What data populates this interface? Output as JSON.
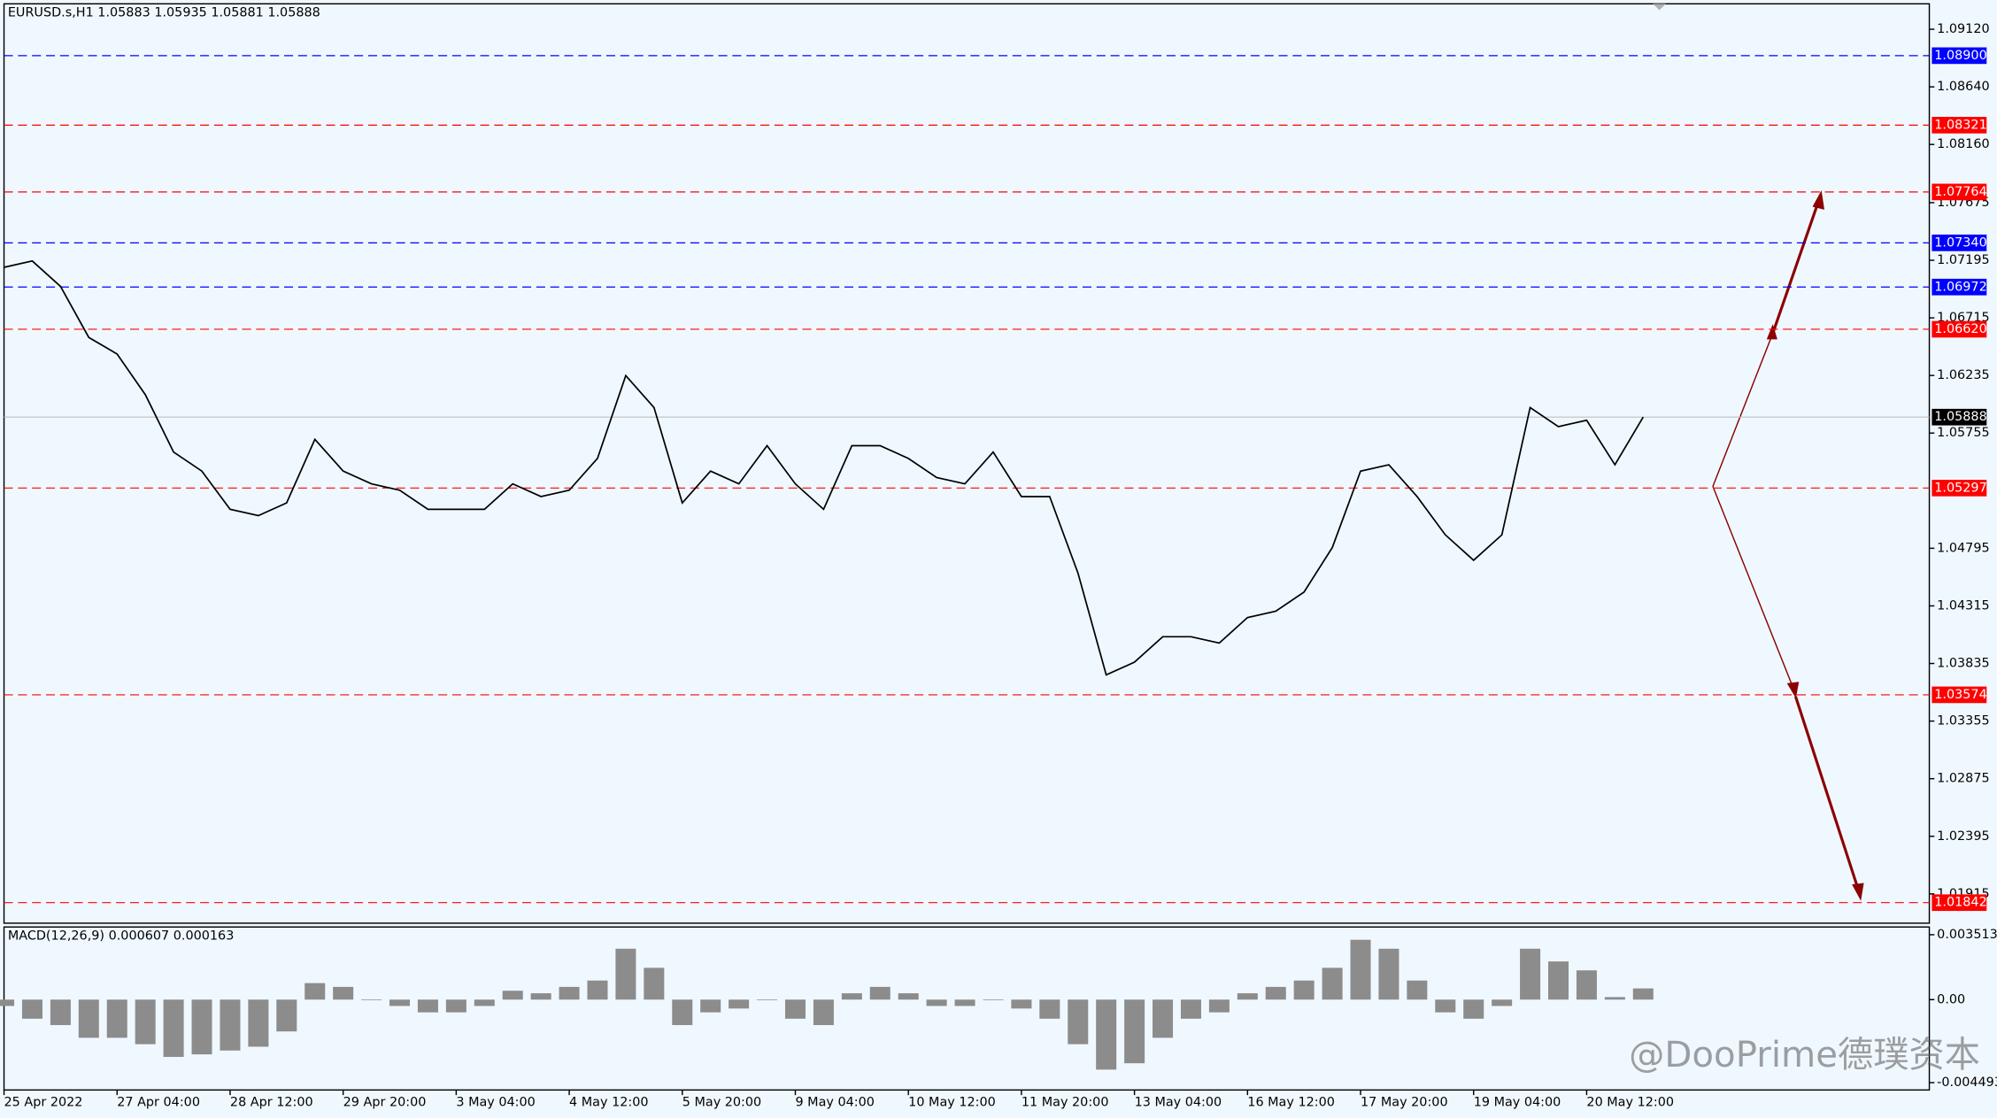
{
  "chart_data": [
    {
      "type": "line",
      "title": "EURUSD.s,H1  1.05883 1.05935 1.05881 1.05888",
      "x": [
        0,
        8,
        16,
        24,
        32,
        40,
        48,
        56,
        64,
        72,
        80,
        88,
        96,
        104,
        112,
        120,
        128,
        136,
        144,
        152,
        160,
        168,
        176,
        184,
        192,
        200,
        208,
        216,
        224,
        232,
        240,
        248,
        256,
        264,
        272,
        280,
        288,
        296,
        304,
        312,
        320,
        328,
        336,
        344,
        352,
        360,
        368,
        376,
        384,
        392,
        400,
        408,
        416,
        424,
        432,
        440,
        448,
        456,
        464
      ],
      "series": [
        {
          "color": "#000000",
          "values": [
            1.07136,
            1.07189,
            1.06977,
            1.06552,
            1.06414,
            1.06075,
            1.05597,
            1.05438,
            1.0512,
            1.05067,
            1.05173,
            1.05703,
            1.05438,
            1.05332,
            1.05279,
            1.0512,
            1.0512,
            1.0512,
            1.05332,
            1.05226,
            1.05279,
            1.05544,
            1.06234,
            1.05968,
            1.05173,
            1.05438,
            1.05332,
            1.0565,
            1.05332,
            1.0512,
            1.0565,
            1.0565,
            1.05544,
            1.05385,
            1.05332,
            1.05597,
            1.05226,
            1.05226,
            1.04589,
            1.0374,
            1.03846,
            1.04058,
            1.04058,
            1.04005,
            1.04218,
            1.04271,
            1.0443,
            1.04801,
            1.05438,
            1.05491,
            1.05226,
            1.04907,
            1.04695,
            1.04907,
            1.05968,
            1.05809,
            1.05862,
            1.05491,
            1.05888
          ]
        }
      ],
      "xlim": [
        0,
        545
      ],
      "xticks": [
        {
          "value": 0,
          "label": "25 Apr 2022"
        },
        {
          "value": 32,
          "label": "27 Apr 04:00"
        },
        {
          "value": 64,
          "label": "28 Apr 12:00"
        },
        {
          "value": 96,
          "label": "29 Apr 20:00"
        },
        {
          "value": 128,
          "label": "3 May 04:00"
        },
        {
          "value": 160,
          "label": "4 May 12:00"
        },
        {
          "value": 192,
          "label": "5 May 20:00"
        },
        {
          "value": 224,
          "label": "9 May 04:00"
        },
        {
          "value": 256,
          "label": "10 May 12:00"
        },
        {
          "value": 288,
          "label": "11 May 20:00"
        },
        {
          "value": 320,
          "label": "13 May 04:00"
        },
        {
          "value": 352,
          "label": "16 May 12:00"
        },
        {
          "value": 384,
          "label": "17 May 20:00"
        },
        {
          "value": 416,
          "label": "19 May 04:00"
        },
        {
          "value": 448,
          "label": "20 May 12:00"
        }
      ],
      "ylim": [
        1.01671,
        1.09332
      ],
      "yticks": [
        {
          "value": 1.0912,
          "label": "1.09120"
        },
        {
          "value": 1.0864,
          "label": "1.08640"
        },
        {
          "value": 1.0816,
          "label": "1.08160"
        },
        {
          "value": 1.07675,
          "label": "1.07675"
        },
        {
          "value": 1.07195,
          "label": "1.07195"
        },
        {
          "value": 1.06715,
          "label": "1.06715"
        },
        {
          "value": 1.06235,
          "label": "1.06235"
        },
        {
          "value": 1.05755,
          "label": "1.05755"
        },
        {
          "value": 1.04795,
          "label": "1.04795"
        },
        {
          "value": 1.04315,
          "label": "1.04315"
        },
        {
          "value": 1.03835,
          "label": "1.03835"
        },
        {
          "value": 1.03355,
          "label": "1.03355"
        },
        {
          "value": 1.02875,
          "label": "1.02875"
        },
        {
          "value": 1.02395,
          "label": "1.02395"
        },
        {
          "value": 1.01915,
          "label": "1.01915"
        }
      ],
      "levels": [
        {
          "value": 1.089,
          "label": "1.08900",
          "color": "#0000ff"
        },
        {
          "value": 1.08321,
          "label": "1.08321",
          "color": "#ff0000"
        },
        {
          "value": 1.07764,
          "label": "1.07764",
          "color": "#ff0000"
        },
        {
          "value": 1.0734,
          "label": "1.07340",
          "color": "#0000ff"
        },
        {
          "value": 1.06972,
          "label": "1.06972",
          "color": "#0000ff"
        },
        {
          "value": 1.0662,
          "label": "1.06620",
          "color": "#ff0000"
        },
        {
          "value": 1.05888,
          "label": "1.05888",
          "color": "#000000"
        },
        {
          "value": 1.05297,
          "label": "1.05297",
          "color": "#ff0000"
        },
        {
          "value": 1.03574,
          "label": "1.03574",
          "color": "#ff0000"
        },
        {
          "value": 1.01842,
          "label": "1.01842",
          "color": "#ff0000"
        }
      ]
    },
    {
      "type": "bar",
      "title": "MACD(12,26,9) 0.000607 0.000163",
      "color": "#8c8c8c",
      "x": [
        0,
        8,
        16,
        24,
        32,
        40,
        48,
        56,
        64,
        72,
        80,
        88,
        96,
        104,
        112,
        120,
        128,
        136,
        144,
        152,
        160,
        168,
        176,
        184,
        192,
        200,
        208,
        216,
        224,
        232,
        240,
        248,
        256,
        264,
        272,
        280,
        288,
        296,
        304,
        312,
        320,
        328,
        336,
        344,
        352,
        360,
        368,
        376,
        384,
        392,
        400,
        408,
        416,
        424,
        432,
        440,
        448,
        456,
        464
      ],
      "values": [
        -0.000344,
        -0.001033,
        -0.001378,
        -0.002066,
        -0.002066,
        -0.002411,
        -0.0031,
        -0.002962,
        -0.002755,
        -0.002548,
        -0.001722,
        0.000895,
        0.000689,
        0,
        -0.000344,
        -0.000689,
        -0.000689,
        -0.000344,
        0.000482,
        0.000344,
        0.000689,
        0.001033,
        0.002755,
        0.001722,
        -0.001378,
        -0.000689,
        -0.000482,
        0,
        -0.001033,
        -0.001378,
        0.000344,
        0.000689,
        0.000344,
        -0.000344,
        -0.000344,
        0,
        -0.000482,
        -0.001033,
        -0.002411,
        -0.003788,
        -0.003444,
        -0.002066,
        -0.001033,
        -0.000689,
        0.000344,
        0.000689,
        0.001033,
        0.001722,
        0.003237,
        0.002755,
        0.001033,
        -0.000689,
        -0.001033,
        -0.000344,
        0.002755,
        0.002066,
        0.001584,
        0.000138,
        0.000607
      ],
      "xlim": [
        0,
        545
      ],
      "ylim": [
        -0.00489,
        0.00393
      ],
      "yticks": [
        {
          "value": 0.003513,
          "label": "0.003513"
        },
        {
          "value": 0,
          "label": "0.00"
        },
        {
          "value": -0.004493,
          "label": "-0.004493"
        }
      ]
    }
  ],
  "watermark": "@DooPrime德璞资本"
}
